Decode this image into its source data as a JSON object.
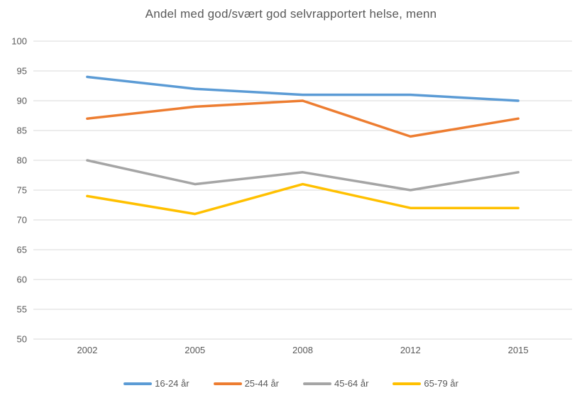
{
  "chart_data": {
    "type": "line",
    "title": "Andel med god/svært god selvrapportert helse, menn",
    "categories": [
      "2002",
      "2005",
      "2008",
      "2012",
      "2015"
    ],
    "series": [
      {
        "name": "16-24 år",
        "color": "#5B9BD5",
        "values": [
          94,
          92,
          91,
          91,
          90
        ]
      },
      {
        "name": "25-44 år",
        "color": "#ED7D31",
        "values": [
          87,
          89,
          90,
          84,
          87
        ]
      },
      {
        "name": "45-64 år",
        "color": "#A5A5A5",
        "values": [
          80,
          76,
          78,
          75,
          78
        ]
      },
      {
        "name": "65-79 år",
        "color": "#FFC000",
        "values": [
          74,
          71,
          76,
          72,
          72
        ]
      }
    ],
    "ylim": [
      50,
      100
    ],
    "ytick_step": 5,
    "yticks": [
      50,
      55,
      60,
      65,
      70,
      75,
      80,
      85,
      90,
      95,
      100
    ],
    "xlabel": "",
    "ylabel": "",
    "grid": true,
    "gridline_color": "#D9D9D9",
    "axis_text_color": "#595959",
    "title_color": "#595959",
    "legend_position": "bottom"
  }
}
